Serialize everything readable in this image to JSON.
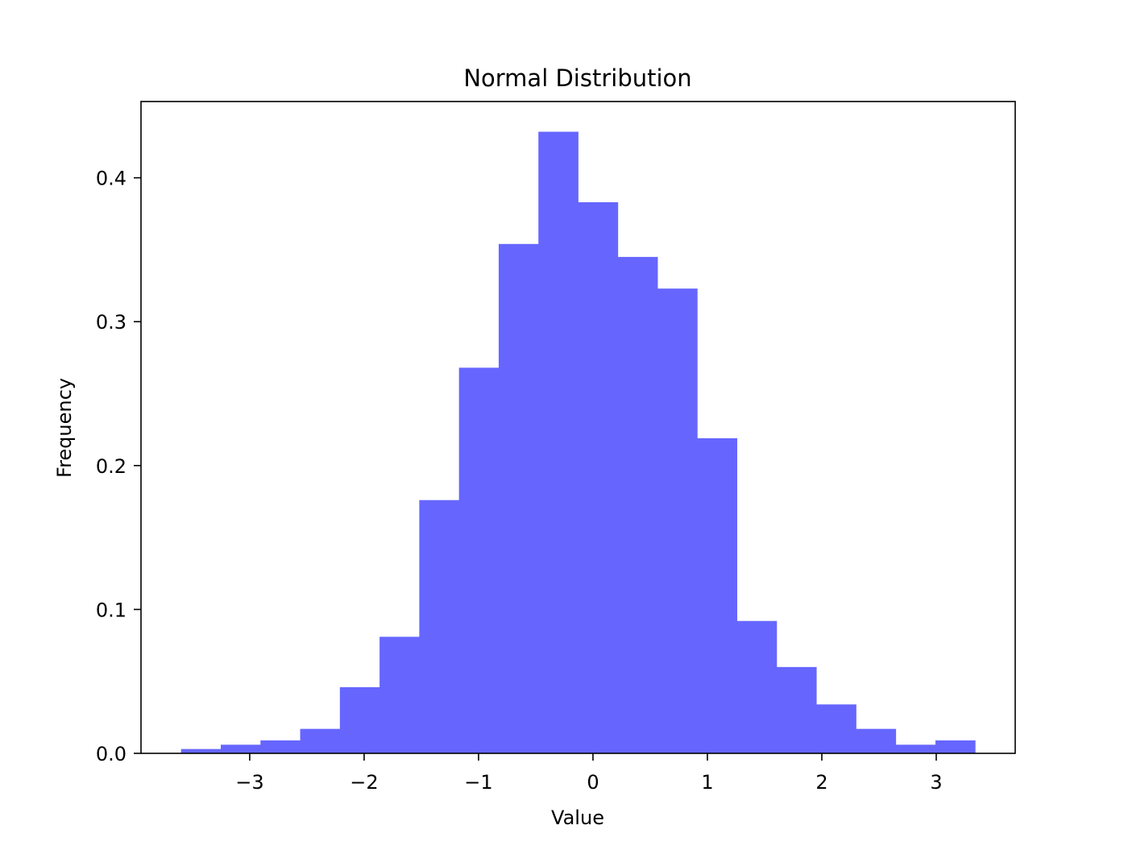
{
  "chart_data": {
    "type": "bar",
    "title": "Normal Distribution",
    "xlabel": "Value",
    "ylabel": "Frequency",
    "bar_color": "#6666ff",
    "grid": false,
    "legend": "none",
    "xlim": [
      -3.95,
      3.69
    ],
    "ylim": [
      0,
      0.453
    ],
    "xticks": [
      -3,
      -2,
      -1,
      0,
      1,
      2,
      3
    ],
    "xtick_labels": [
      "−3",
      "−2",
      "−1",
      "0",
      "1",
      "2",
      "3"
    ],
    "yticks": [
      0.0,
      0.1,
      0.2,
      0.3,
      0.4
    ],
    "ytick_labels": [
      "0.0",
      "0.1",
      "0.2",
      "0.3",
      "0.4"
    ],
    "bin_edges": [
      -3.6,
      -3.253,
      -2.906,
      -2.559,
      -2.212,
      -1.865,
      -1.518,
      -1.171,
      -0.824,
      -0.477,
      -0.13,
      0.217,
      0.564,
      0.911,
      1.258,
      1.605,
      1.952,
      2.299,
      2.646,
      2.993,
      3.34
    ],
    "values": [
      0.003,
      0.006,
      0.009,
      0.017,
      0.046,
      0.081,
      0.176,
      0.268,
      0.354,
      0.432,
      0.383,
      0.345,
      0.323,
      0.219,
      0.092,
      0.06,
      0.034,
      0.017,
      0.006,
      0.009
    ]
  }
}
